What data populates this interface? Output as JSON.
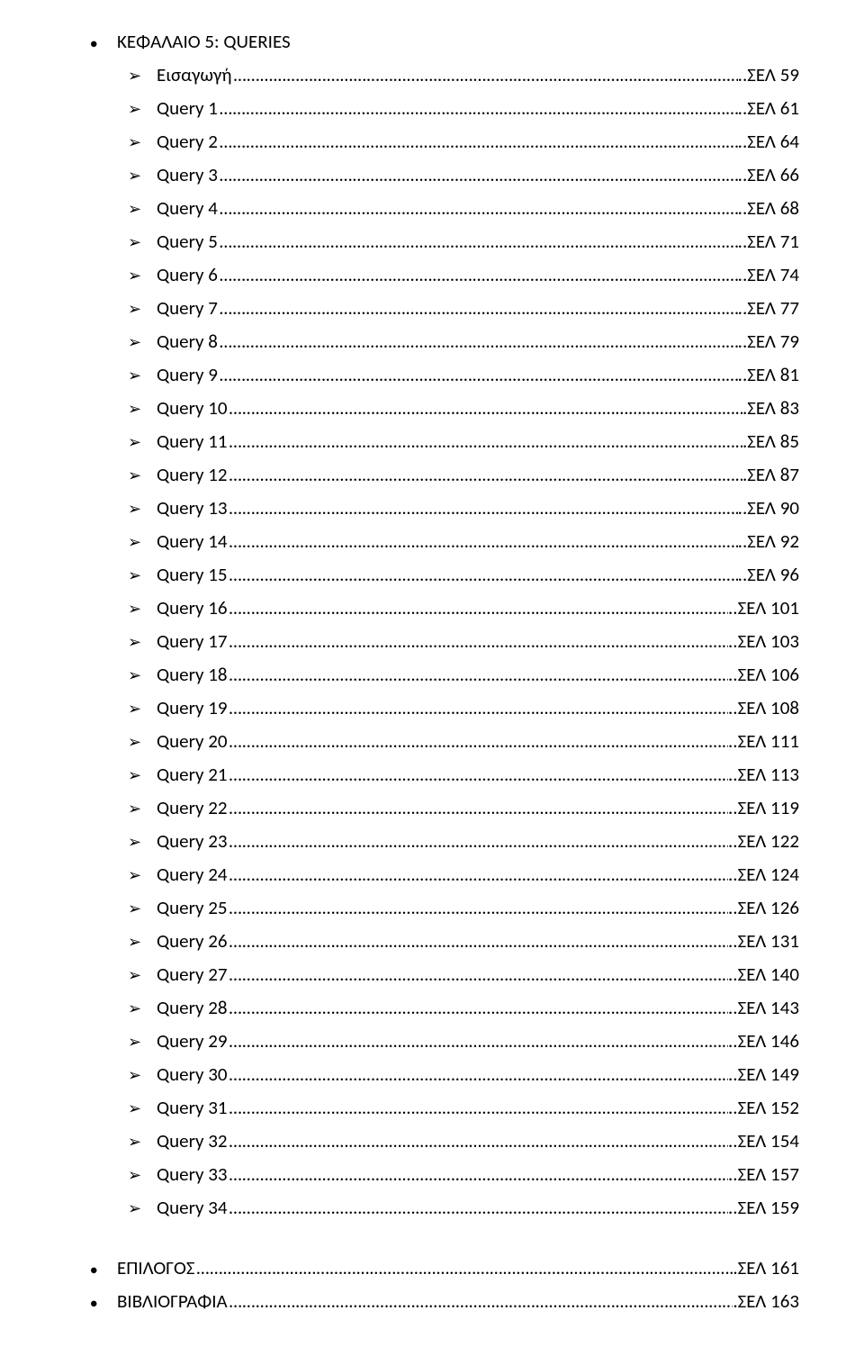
{
  "chapter": {
    "label": "ΚΕΦΑΛΑΙΟ 5: QUERIES"
  },
  "items": [
    {
      "label": "Εισαγωγή",
      "page": "..ΣΕΛ 59"
    },
    {
      "label": "Query 1",
      "page": "..ΣΕΛ 61"
    },
    {
      "label": "Query 2",
      "page": "..ΣΕΛ 64"
    },
    {
      "label": "Query 3",
      "page": "..ΣΕΛ 66"
    },
    {
      "label": "Query 4",
      "page": "..ΣΕΛ 68"
    },
    {
      "label": "Query 5",
      "page": "..ΣΕΛ 71"
    },
    {
      "label": "Query 6",
      "page": "..ΣΕΛ 74"
    },
    {
      "label": "Query 7",
      "page": "..ΣΕΛ 77"
    },
    {
      "label": "Query 8",
      "page": "..ΣΕΛ 79"
    },
    {
      "label": "Query 9",
      "page": "..ΣΕΛ 81"
    },
    {
      "label": "Query 10",
      "page": ".ΣΕΛ 83"
    },
    {
      "label": "Query 11",
      "page": ".ΣΕΛ 85"
    },
    {
      "label": "Query 12",
      "page": ".ΣΕΛ 87"
    },
    {
      "label": "Query 13",
      "page": "..ΣΕΛ 90"
    },
    {
      "label": "Query 14",
      "page": "..ΣΕΛ 92"
    },
    {
      "label": "Query 15",
      "page": "..ΣΕΛ 96"
    },
    {
      "label": "Query 16",
      "page": "..ΣΕΛ 101"
    },
    {
      "label": "Query 17",
      "page": "..ΣΕΛ 103"
    },
    {
      "label": "Query 18",
      "page": "..ΣΕΛ 106"
    },
    {
      "label": "Query 19",
      "page": "..ΣΕΛ 108"
    },
    {
      "label": "Query 20",
      "page": "..ΣΕΛ 111"
    },
    {
      "label": "Query 21",
      "page": "..ΣΕΛ 113"
    },
    {
      "label": "Query 22",
      "page": "..ΣΕΛ 119"
    },
    {
      "label": "Query 23",
      "page": "..ΣΕΛ 122"
    },
    {
      "label": "Query 24",
      "page": "..ΣΕΛ 124"
    },
    {
      "label": "Query 25",
      "page": "..ΣΕΛ 126"
    },
    {
      "label": "Query 26",
      "page": "..ΣΕΛ 131"
    },
    {
      "label": "Query 27",
      "page": "..ΣΕΛ 140"
    },
    {
      "label": "Query 28",
      "page": "..ΣΕΛ 143"
    },
    {
      "label": "Query 29",
      "page": "..ΣΕΛ 146"
    },
    {
      "label": "Query 30",
      "page": "..ΣΕΛ 149"
    },
    {
      "label": "Query 31",
      "page": "..ΣΕΛ 152"
    },
    {
      "label": "Query 32",
      "page": "..ΣΕΛ 154"
    },
    {
      "label": "Query 33",
      "page": "..ΣΕΛ 157"
    },
    {
      "label": "Query 34",
      "page": "..ΣΕΛ 159"
    }
  ],
  "tail": [
    {
      "label": "ΕΠΙΛΟΓΟΣ",
      "page": ".ΣΕΛ 161"
    },
    {
      "label": "ΒΙΒΛΙΟΓΡΑΦΙΑ",
      "page": ".ΣΕΛ 163"
    }
  ],
  "glyphs": {
    "bullet": "●",
    "chevron": "➢",
    "leader": "…"
  },
  "style": {
    "text_color": "#000000",
    "background_color": "#ffffff",
    "font_family": "Calibri, Arial, sans-serif",
    "font_size_pt": 16
  }
}
